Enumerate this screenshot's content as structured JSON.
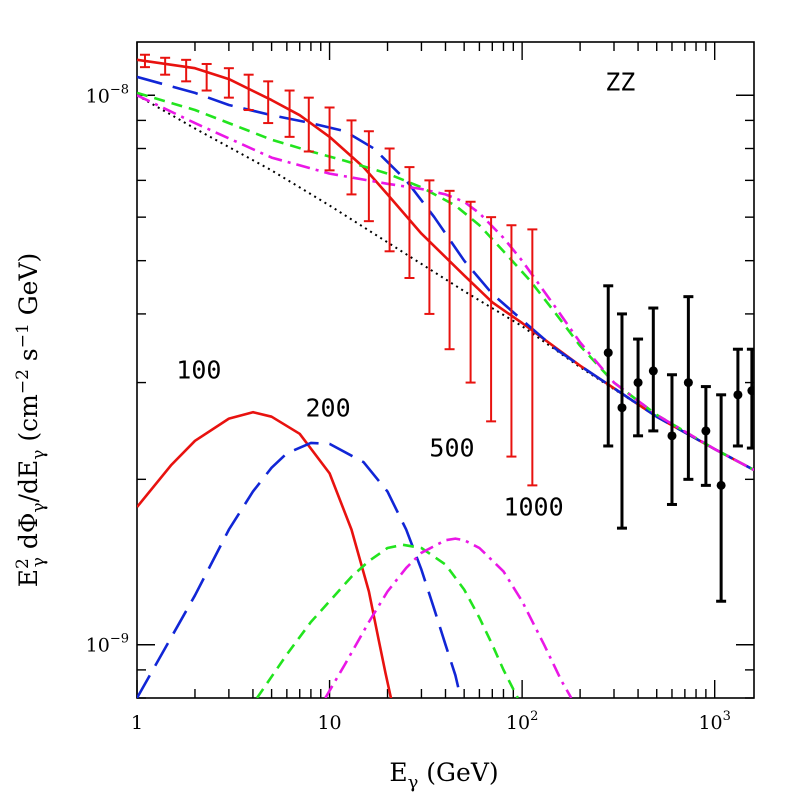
{
  "chart_data": {
    "type": "line",
    "title": "",
    "xlabel": "E_γ (GeV)",
    "ylabel": "E²_γ dΦ_γ/dE_γ (cm⁻² s⁻¹ GeV)",
    "xscale": "log",
    "yscale": "log",
    "xlim": [
      1,
      1600
    ],
    "ylim": [
      8e-10,
      1.25e-08
    ],
    "x_tick_labels": [
      {
        "value": 1,
        "base": "1",
        "exp": ""
      },
      {
        "value": 10,
        "base": "10",
        "exp": ""
      },
      {
        "value": 100,
        "base": "10",
        "exp": "2"
      },
      {
        "value": 1000,
        "base": "10",
        "exp": "3"
      }
    ],
    "y_tick_labels": [
      {
        "value": 1e-09,
        "base": "10",
        "exp": "−9"
      },
      {
        "value": 1e-08,
        "base": "10",
        "exp": "−8"
      }
    ],
    "colors": {
      "red": "#e8120f",
      "blue": "#1126d6",
      "green": "#22e41e",
      "magenta": "#ea17e6",
      "black": "#000000"
    },
    "series": [
      {
        "key": "background",
        "color": "#000000",
        "style": "dotted",
        "x": [
          1,
          2,
          5,
          10,
          20,
          50,
          100,
          200,
          500,
          1000,
          1600
        ],
        "y": [
          1e-08,
          8.7e-09,
          7.3e-09,
          6.3e-09,
          5.4e-09,
          4.4e-09,
          3.8e-09,
          3.2e-09,
          2.6e-09,
          2.27e-09,
          2.08e-09
        ]
      },
      {
        "key": "total-100",
        "color": "#e8120f",
        "style": "solid",
        "x": [
          1,
          2,
          3,
          5,
          7,
          10,
          15,
          20,
          30,
          50,
          70,
          100,
          200,
          500,
          1000,
          1600
        ],
        "y": [
          1.16e-08,
          1.12e-08,
          1.07e-08,
          9.8e-09,
          9.2e-09,
          8.4e-09,
          7.4e-09,
          6.6e-09,
          5.6e-09,
          4.7e-09,
          4.2e-09,
          3.85e-09,
          3.22e-09,
          2.6e-09,
          2.27e-09,
          2.08e-09
        ]
      },
      {
        "key": "total-200",
        "color": "#1126d6",
        "style": "long-dash",
        "x": [
          1,
          2,
          3,
          5,
          8,
          12,
          17,
          25,
          35,
          50,
          70,
          100,
          150,
          200,
          500,
          1000,
          1600
        ],
        "y": [
          1.08e-08,
          1.01e-08,
          9.6e-09,
          9.2e-09,
          8.9e-09,
          8.6e-09,
          8e-09,
          7e-09,
          6e-09,
          5e-09,
          4.35e-09,
          3.9e-09,
          3.45e-09,
          3.22e-09,
          2.6e-09,
          2.27e-09,
          2.08e-09
        ]
      },
      {
        "key": "total-500",
        "color": "#22e41e",
        "style": "short-dash",
        "x": [
          1,
          2,
          3,
          5,
          8,
          12,
          20,
          30,
          45,
          60,
          80,
          110,
          150,
          200,
          300,
          500,
          1000,
          1600
        ],
        "y": [
          1.01e-08,
          9.4e-09,
          8.9e-09,
          8.3e-09,
          7.9e-09,
          7.6e-09,
          7.2e-09,
          6.8e-09,
          6.3e-09,
          5.8e-09,
          5.2e-09,
          4.6e-09,
          4e-09,
          3.5e-09,
          3e-09,
          2.62e-09,
          2.27e-09,
          2.08e-09
        ]
      },
      {
        "key": "total-1000",
        "color": "#ea17e6",
        "style": "dash-dot",
        "x": [
          1,
          2,
          5,
          10,
          20,
          30,
          40,
          50,
          60,
          80,
          100,
          150,
          200,
          300,
          500,
          1000,
          1600
        ],
        "y": [
          1e-08,
          8.9e-09,
          7.7e-09,
          7.2e-09,
          6.9e-09,
          6.75e-09,
          6.6e-09,
          6.4e-09,
          6.1e-09,
          5.5e-09,
          5e-09,
          4.1e-09,
          3.55e-09,
          3e-09,
          2.62e-09,
          2.27e-09,
          2.08e-09
        ]
      },
      {
        "key": "signal-100",
        "color": "#e8120f",
        "style": "solid",
        "x": [
          1,
          1.5,
          2,
          3,
          4,
          5,
          7,
          10,
          13,
          16,
          18,
          19.5,
          21
        ],
        "y": [
          1.78e-09,
          2.12e-09,
          2.35e-09,
          2.58e-09,
          2.65e-09,
          2.6e-09,
          2.42e-09,
          2.05e-09,
          1.62e-09,
          1.25e-09,
          1.02e-09,
          8.9e-10,
          7.9e-10
        ]
      },
      {
        "key": "signal-200",
        "color": "#1126d6",
        "style": "long-dash",
        "x": [
          1,
          2,
          3,
          4,
          5,
          6,
          8,
          10,
          15,
          20,
          25,
          30,
          35,
          40,
          45,
          48
        ],
        "y": [
          8e-10,
          1.23e-09,
          1.62e-09,
          1.9e-09,
          2.1e-09,
          2.23e-09,
          2.33e-09,
          2.32e-09,
          2.15e-09,
          1.9e-09,
          1.62e-09,
          1.37e-09,
          1.16e-09,
          1e-09,
          8.8e-10,
          8e-10
        ]
      },
      {
        "key": "signal-500",
        "color": "#22e41e",
        "style": "short-dash",
        "x": [
          4.2,
          6,
          8,
          10,
          13,
          16,
          20,
          24,
          30,
          40,
          50,
          60,
          70,
          80,
          90,
          95
        ],
        "y": [
          8e-10,
          9.6e-10,
          1.1e-09,
          1.2e-09,
          1.33e-09,
          1.42e-09,
          1.5e-09,
          1.52e-09,
          1.5e-09,
          1.4e-09,
          1.26e-09,
          1.12e-09,
          1e-09,
          9e-10,
          8.3e-10,
          8e-10
        ]
      },
      {
        "key": "signal-1000",
        "color": "#ea17e6",
        "style": "dash-dot",
        "x": [
          9.5,
          12,
          16,
          20,
          25,
          30,
          40,
          45,
          50,
          60,
          80,
          100,
          130,
          160,
          180
        ],
        "y": [
          8e-10,
          9.2e-10,
          1.1e-09,
          1.25e-09,
          1.38e-09,
          1.47e-09,
          1.55e-09,
          1.56e-09,
          1.55e-09,
          1.5e-09,
          1.36e-09,
          1.2e-09,
          1e-09,
          8.6e-10,
          8e-10
        ]
      }
    ],
    "error_bars_red": [
      {
        "x": 1.1,
        "y": 1.155e-08,
        "lo": 1.125e-08,
        "hi": 1.185e-08
      },
      {
        "x": 1.4,
        "y": 1.13e-08,
        "lo": 1.09e-08,
        "hi": 1.17e-08
      },
      {
        "x": 1.8,
        "y": 1.11e-08,
        "lo": 1.06e-08,
        "hi": 1.16e-08
      },
      {
        "x": 2.3,
        "y": 1.08e-08,
        "lo": 1.02e-08,
        "hi": 1.14e-08
      },
      {
        "x": 3.0,
        "y": 1.05e-08,
        "lo": 9.9e-09,
        "hi": 1.12e-08
      },
      {
        "x": 3.8,
        "y": 1.01e-08,
        "lo": 9.4e-09,
        "hi": 1.09e-08
      },
      {
        "x": 4.8,
        "y": 9.7e-09,
        "lo": 8.9e-09,
        "hi": 1.06e-08
      },
      {
        "x": 6.2,
        "y": 9.3e-09,
        "lo": 8.4e-09,
        "hi": 1.02e-08
      },
      {
        "x": 7.8,
        "y": 8.9e-09,
        "lo": 7.9e-09,
        "hi": 9.9e-09
      },
      {
        "x": 10,
        "y": 8.4e-09,
        "lo": 7.3e-09,
        "hi": 9.5e-09
      },
      {
        "x": 13,
        "y": 7.8e-09,
        "lo": 6.6e-09,
        "hi": 9e-09
      },
      {
        "x": 16,
        "y": 7.2e-09,
        "lo": 5.9e-09,
        "hi": 8.6e-09
      },
      {
        "x": 20.5,
        "y": 6.6e-09,
        "lo": 5.2e-09,
        "hi": 8e-09
      },
      {
        "x": 26,
        "y": 6e-09,
        "lo": 4.65e-09,
        "hi": 7.4e-09
      },
      {
        "x": 33,
        "y": 5.5e-09,
        "lo": 4e-09,
        "hi": 7e-09
      },
      {
        "x": 42,
        "y": 5.1e-09,
        "lo": 3.45e-09,
        "hi": 6.7e-09
      },
      {
        "x": 54,
        "y": 4.7e-09,
        "lo": 3e-09,
        "hi": 6.4e-09
      },
      {
        "x": 69,
        "y": 4.3e-09,
        "lo": 2.55e-09,
        "hi": 6e-09
      },
      {
        "x": 88,
        "y": 4e-09,
        "lo": 2.2e-09,
        "hi": 5.8e-09
      },
      {
        "x": 113,
        "y": 3.8e-09,
        "lo": 1.95e-09,
        "hi": 5.7e-09
      }
    ],
    "data_points_black": [
      {
        "x": 280,
        "y": 3.4e-09,
        "lo": 2.3e-09,
        "hi": 4.5e-09
      },
      {
        "x": 330,
        "y": 2.7e-09,
        "lo": 1.63e-09,
        "hi": 4e-09
      },
      {
        "x": 400,
        "y": 3e-09,
        "lo": 2.4e-09,
        "hi": 3.6e-09
      },
      {
        "x": 480,
        "y": 3.15e-09,
        "lo": 2.45e-09,
        "hi": 4.1e-09
      },
      {
        "x": 600,
        "y": 2.4e-09,
        "lo": 1.8e-09,
        "hi": 3.1e-09
      },
      {
        "x": 730,
        "y": 3e-09,
        "lo": 2e-09,
        "hi": 4.3e-09
      },
      {
        "x": 900,
        "y": 2.45e-09,
        "lo": 1.95e-09,
        "hi": 2.95e-09
      },
      {
        "x": 1080,
        "y": 1.95e-09,
        "lo": 1.2e-09,
        "hi": 2.85e-09
      },
      {
        "x": 1320,
        "y": 2.85e-09,
        "lo": 2.3e-09,
        "hi": 3.45e-09
      },
      {
        "x": 1560,
        "y": 2.9e-09,
        "lo": 2.28e-09,
        "hi": 3.45e-09
      }
    ],
    "annotations": [
      {
        "text": "ZZ",
        "x": 270,
        "y": 1.02e-08
      },
      {
        "text": "100",
        "x": 1.6,
        "y": 3.05e-09
      },
      {
        "text": "200",
        "x": 7.5,
        "y": 2.6e-09
      },
      {
        "text": "500",
        "x": 33,
        "y": 2.2e-09
      },
      {
        "text": "1000",
        "x": 80,
        "y": 1.72e-09
      }
    ]
  }
}
